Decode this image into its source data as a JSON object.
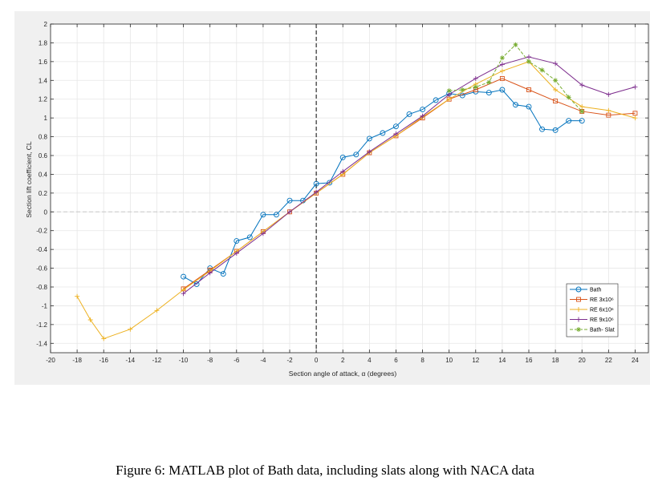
{
  "caption": "Figure 6: MATLAB plot of Bath data, including slats along with NACA data",
  "chart_data": {
    "type": "line",
    "xlabel": "Section angle of attack, α (degrees)",
    "ylabel": "Section lift coefficient, CL",
    "xlim": [
      -20,
      25
    ],
    "ylim": [
      -1.5,
      2
    ],
    "xticks": [
      -20,
      -18,
      -16,
      -14,
      -12,
      -10,
      -8,
      -6,
      -4,
      -2,
      0,
      2,
      4,
      6,
      8,
      10,
      12,
      14,
      16,
      18,
      20,
      22,
      24
    ],
    "yticks": [
      -1.4,
      -1.2,
      -1,
      -0.8,
      -0.6,
      -0.4,
      -0.2,
      0,
      0.2,
      0.4,
      0.6,
      0.8,
      1,
      1.2,
      1.4,
      1.6,
      1.8,
      2
    ],
    "grid": true,
    "legend_position": "bottom-right",
    "reference_lines": {
      "vertical_x": 0,
      "horizontal_y": 0
    },
    "series": [
      {
        "name": "Bath",
        "color": "#0072BD",
        "marker": "circle",
        "style": "solid",
        "x": [
          -10,
          -9,
          -8,
          -7,
          -6,
          -5,
          -4,
          -3,
          -2,
          -1,
          0,
          1,
          2,
          3,
          4,
          5,
          6,
          7,
          8,
          9,
          10,
          11,
          12,
          13,
          14,
          15,
          16,
          17,
          18,
          19,
          20
        ],
        "y": [
          -0.69,
          -0.77,
          -0.6,
          -0.66,
          -0.31,
          -0.27,
          -0.03,
          -0.03,
          0.12,
          0.12,
          0.3,
          0.31,
          0.58,
          0.61,
          0.78,
          0.84,
          0.91,
          1.04,
          1.09,
          1.19,
          1.26,
          1.24,
          1.28,
          1.27,
          1.3,
          1.14,
          1.12,
          0.88,
          0.87,
          0.97,
          0.97
        ]
      },
      {
        "name": "RE 3x10⁶",
        "color": "#D95319",
        "marker": "square",
        "style": "solid",
        "x": [
          -10,
          -8,
          -6,
          -4,
          -2,
          0,
          2,
          4,
          6,
          8,
          10,
          12,
          14,
          16,
          18,
          20,
          22,
          24
        ],
        "y": [
          -0.82,
          -0.62,
          -0.42,
          -0.21,
          0.0,
          0.2,
          0.4,
          0.63,
          0.81,
          1.0,
          1.2,
          1.3,
          1.42,
          1.3,
          1.18,
          1.07,
          1.03,
          1.05
        ]
      },
      {
        "name": "RE 6x10⁶",
        "color": "#EDB120",
        "marker": "plus",
        "style": "solid",
        "x": [
          -18,
          -17,
          -16,
          -14,
          -12,
          -10,
          -8,
          -6,
          -4,
          -2,
          0,
          2,
          4,
          6,
          8,
          10,
          12,
          14,
          16,
          18,
          20,
          22,
          24
        ],
        "y": [
          -0.9,
          -1.15,
          -1.35,
          -1.25,
          -1.05,
          -0.83,
          -0.63,
          -0.42,
          -0.21,
          0.0,
          0.2,
          0.4,
          0.63,
          0.81,
          1.01,
          1.2,
          1.36,
          1.5,
          1.6,
          1.3,
          1.12,
          1.08,
          1.0
        ]
      },
      {
        "name": "RE 9x10⁶",
        "color": "#7E2F8E",
        "marker": "plus",
        "style": "solid",
        "x": [
          -10,
          -8,
          -6,
          -4,
          -2,
          0,
          2,
          4,
          6,
          8,
          10,
          12,
          14,
          16,
          18,
          20,
          22,
          24
        ],
        "y": [
          -0.87,
          -0.65,
          -0.44,
          -0.23,
          0.0,
          0.21,
          0.43,
          0.64,
          0.83,
          1.02,
          1.25,
          1.42,
          1.57,
          1.65,
          1.58,
          1.35,
          1.25,
          1.33
        ]
      },
      {
        "name": "Bath- Slat",
        "color": "#77AC30",
        "marker": "star",
        "style": "dashed",
        "x": [
          10,
          11,
          12,
          13,
          14,
          15,
          16,
          17,
          18,
          19,
          20
        ],
        "y": [
          1.29,
          1.3,
          1.33,
          1.38,
          1.64,
          1.78,
          1.6,
          1.51,
          1.4,
          1.22,
          1.07
        ]
      }
    ]
  }
}
